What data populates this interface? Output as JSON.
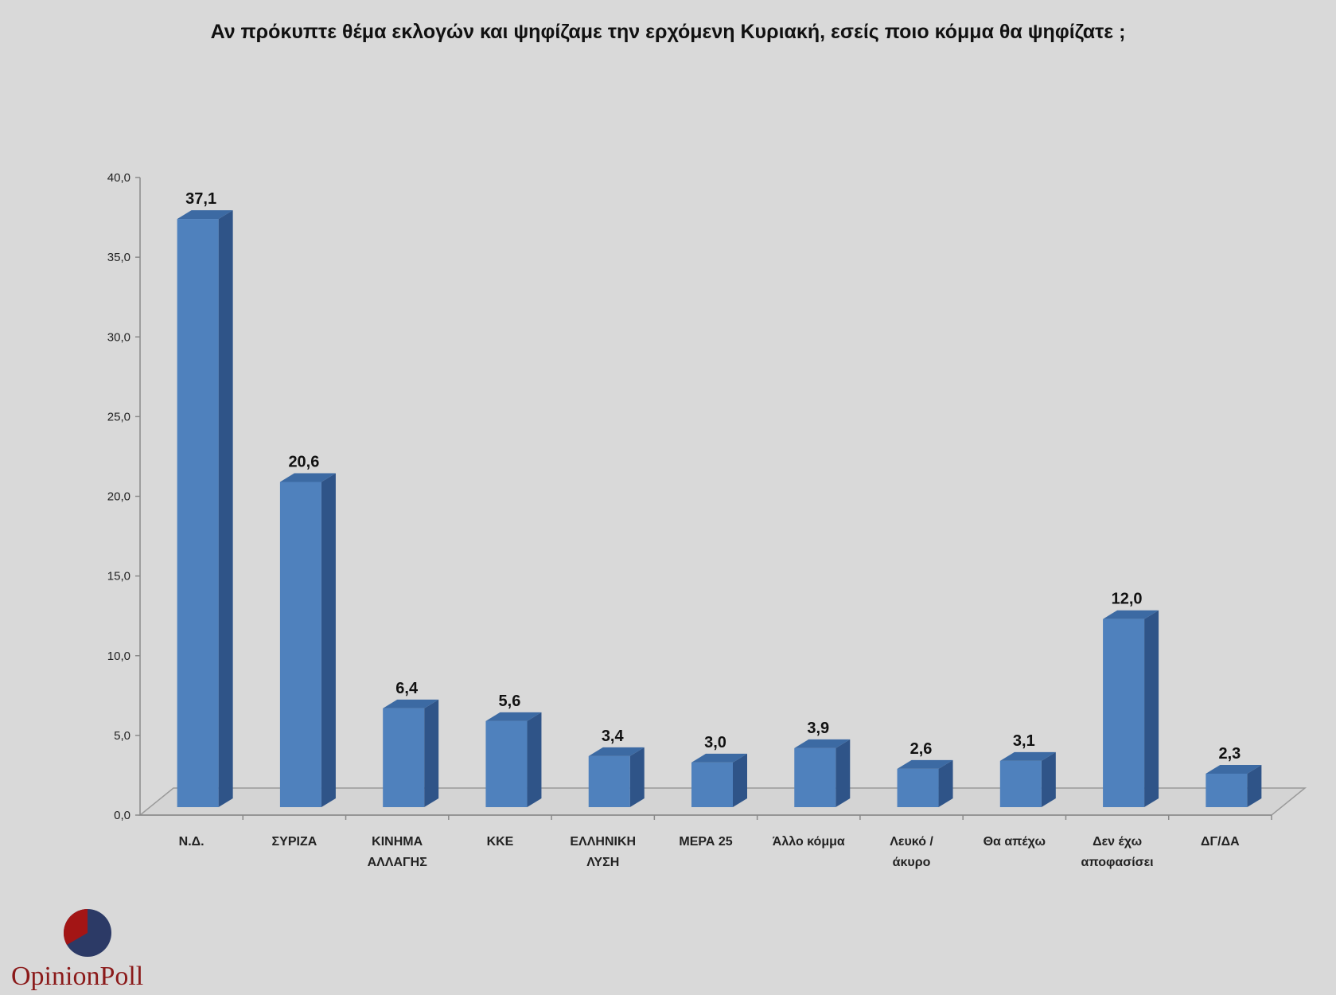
{
  "chart_data": {
    "type": "bar",
    "title": "Αν πρόκυπτε θέμα εκλογών και ψηφίζαμε την ερχόμενη Κυριακή, εσείς ποιο κόμμα θα ψηφίζατε ;",
    "categories": [
      [
        "Ν.Δ."
      ],
      [
        "ΣΥΡΙΖΑ"
      ],
      [
        "ΚΙΝΗΜΑ",
        "ΑΛΛΑΓΗΣ"
      ],
      [
        "ΚΚΕ"
      ],
      [
        "ΕΛΛΗΝΙΚΗ",
        "ΛΥΣΗ"
      ],
      [
        "ΜΕΡΑ 25"
      ],
      [
        "Άλλο κόμμα"
      ],
      [
        "Λευκό /",
        "άκυρο"
      ],
      [
        "Θα απέχω"
      ],
      [
        "Δεν έχω",
        "αποφασίσει"
      ],
      [
        "ΔΓ/ΔΑ"
      ]
    ],
    "values": [
      37.1,
      20.6,
      6.4,
      5.6,
      3.4,
      3.0,
      3.9,
      2.6,
      3.1,
      12.0,
      2.3
    ],
    "value_labels": [
      "37,1",
      "20,6",
      "6,4",
      "5,6",
      "3,4",
      "3,0",
      "3,9",
      "2,6",
      "3,1",
      "12,0",
      "2,3"
    ],
    "yticks": [
      "0,0",
      "5,0",
      "10,0",
      "15,0",
      "20,0",
      "25,0",
      "30,0",
      "35,0",
      "40,0"
    ],
    "ylim": [
      0,
      40
    ],
    "grid": false,
    "legend": "none",
    "bar_color": "#4f81bd",
    "bar_side_color": "#2f5488",
    "bar_top_color": "#3c6aa3"
  },
  "logo": {
    "text": "OpinionPoll",
    "colors": {
      "red": "#a31515",
      "navy": "#2c3a66",
      "text": "#8b1a1a"
    }
  }
}
